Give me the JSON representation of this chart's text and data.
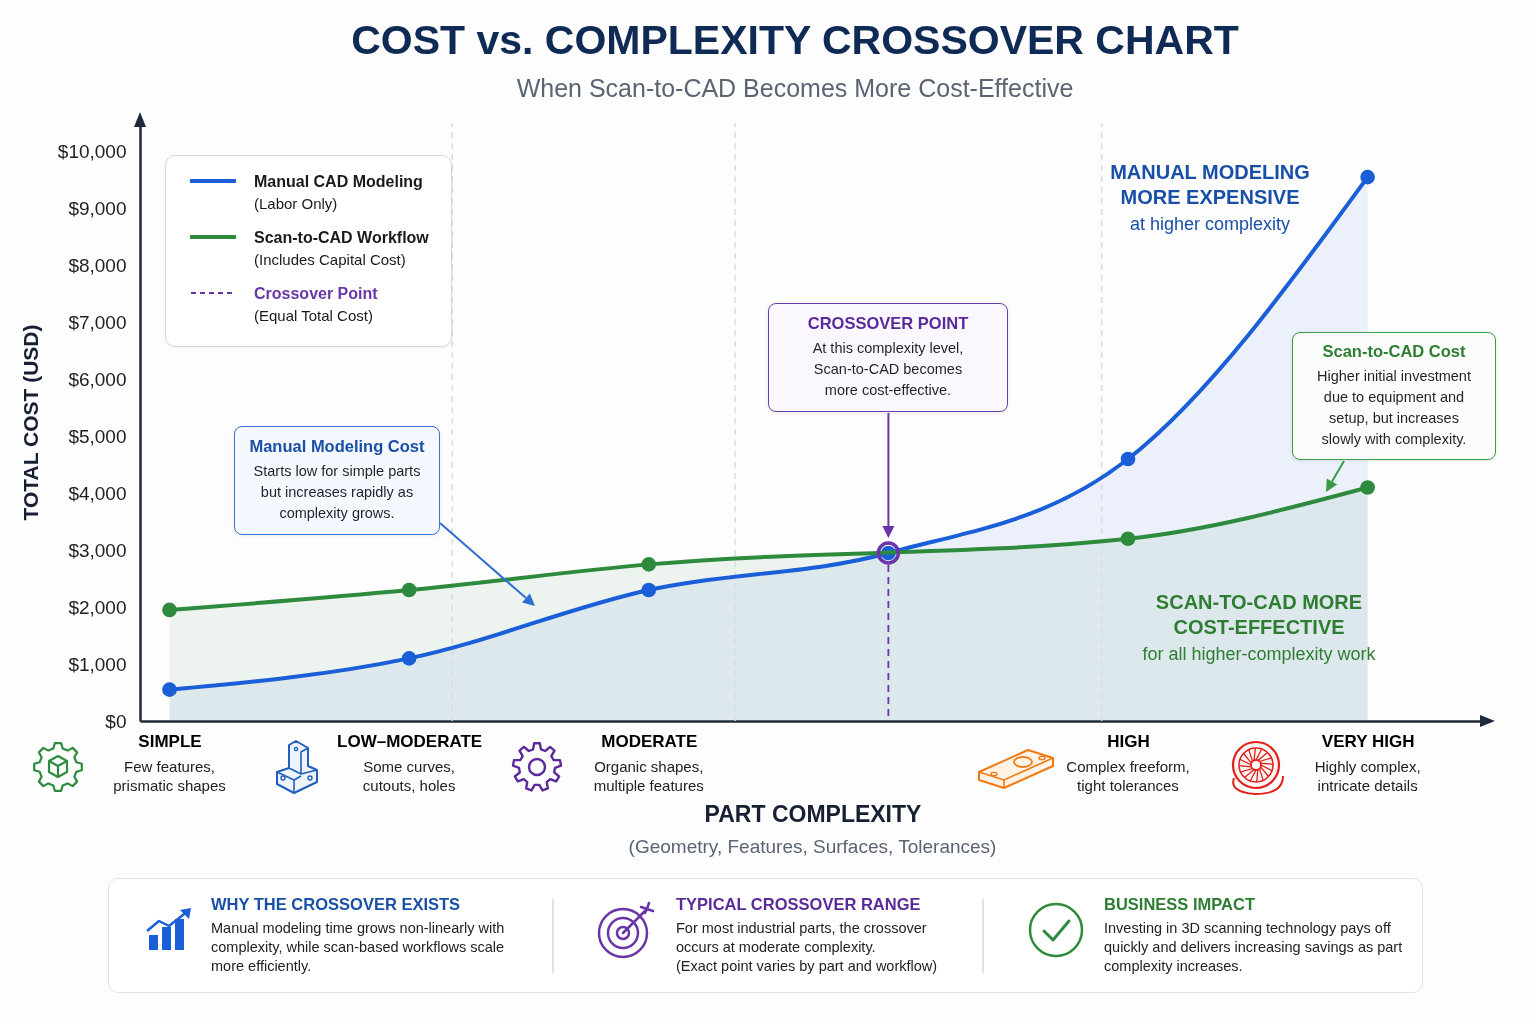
{
  "chart_data": {
    "type": "area",
    "title": "COST vs. COMPLEXITY CROSSOVER CHART",
    "subtitle": "When Scan-to-CAD Becomes More Cost-Effective",
    "xlabel": "PART COMPLEXITY",
    "ylabel": "TOTAL COST (USD)",
    "categories": [
      "SIMPLE",
      "LOW–MODERATE",
      "MODERATE",
      null,
      "HIGH",
      "VERY HIGH"
    ],
    "series": [
      {
        "name": "Manual CAD Modeling (Labor Only)",
        "color": "#1a5ed8",
        "values": [
          550,
          1100,
          2300,
          2950,
          4600,
          9550
        ]
      },
      {
        "name": "Scan-to-CAD Workflow (Includes Capital Cost)",
        "color": "#2e8b3e",
        "values": [
          1950,
          2300,
          2750,
          null,
          3200,
          4100
        ]
      },
      {
        "name": "Crossover Point (Equal Total Cost)",
        "type": "lollipop",
        "color": "#6a35a8",
        "line_style": "dashed",
        "values": [
          null,
          null,
          null,
          2950,
          null,
          null
        ]
      }
    ],
    "ylim": [
      0,
      10500
    ],
    "yticks": [
      {
        "value": 0,
        "label": "$0"
      },
      {
        "value": 1000,
        "label": "$1,000"
      },
      {
        "value": 2000,
        "label": "$2,000"
      },
      {
        "value": 3000,
        "label": "$3,000"
      },
      {
        "value": 4000,
        "label": "$4,000"
      },
      {
        "value": 5000,
        "label": "$5,000"
      },
      {
        "value": 6000,
        "label": "$6,000"
      },
      {
        "value": 7000,
        "label": "$7,000"
      },
      {
        "value": 8000,
        "label": "$8,000"
      },
      {
        "value": 9000,
        "label": "$9,000"
      },
      {
        "value": 10000,
        "label": "$10,000"
      }
    ],
    "legend": "top left",
    "marker": "circle",
    "annotations": [
      "MANUAL MODELING MORE EXPENSIVE",
      "at higher complexity",
      "Manual Modeling Cost",
      "Starts low for simple parts but increases rapidly as complexity grows.",
      "CROSSOVER POINT",
      "At this complexity level, Scan-to-CAD becomes more cost-effective.",
      "Scan-to-CAD Cost",
      "Higher initial investment due to equipment and setup, but increases slowly with complexity.",
      "SCAN-TO-CAD MORE COST-EFFECTIVE",
      "for all higher-complexity work",
      "Few features, prismatic shapes",
      "Some curves, cutouts, holes",
      "Organic shapes, multiple features",
      "Complex freeform, tight tolerances",
      "Highly complex, intricate details",
      "(Geometry, Features, Surfaces, Tolerances)",
      "WHY THE CROSSOVER EXISTS",
      "Manual modeling time grows non-linearly with complexity, while scan-based workflows scale more efficiently.",
      "TYPICAL CROSSOVER RANGE",
      "For most industrial parts, the crossover occurs at moderate complexity.",
      "(Exact point varies by part and workflow)",
      "BUSINESS IMPACT",
      "Investing in 3D scanning technology pays off quickly and delivers increasing savings as part complexity increases."
    ]
  }
}
